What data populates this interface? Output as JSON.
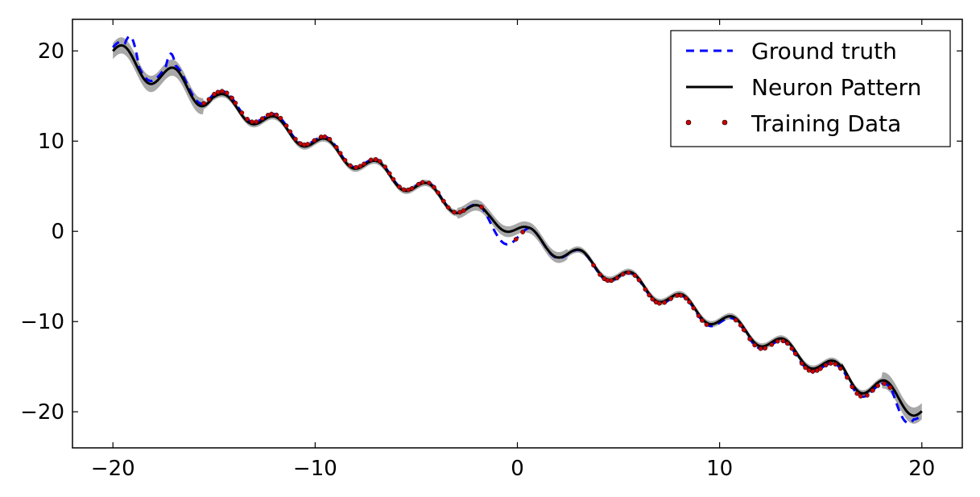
{
  "chart_data": {
    "type": "line",
    "title": "",
    "xlabel": "",
    "ylabel": "",
    "xlim": [
      -22,
      22
    ],
    "ylim": [
      -24,
      23.5
    ],
    "xticks": [
      -20,
      -10,
      0,
      10,
      20
    ],
    "yticks": [
      20,
      10,
      0,
      -10,
      -20
    ],
    "xtick_labels": [
      "−20",
      "−10",
      "0",
      "10",
      "20"
    ],
    "ytick_labels": [
      "20",
      "10",
      "0",
      "−10",
      "−20"
    ],
    "grid": false,
    "legend_position": "top-right",
    "series": [
      {
        "name": "Ground truth",
        "style": "dashed",
        "color": "#0000ff",
        "model": "y = -x + A*sin(2.5x)",
        "x_range": [
          -20,
          20
        ]
      },
      {
        "name": "Neuron Pattern",
        "style": "solid",
        "color": "#000000",
        "uncertainty_band_color": "#999999",
        "x_range": [
          -20,
          20
        ]
      },
      {
        "name": "Training Data",
        "style": "dotted-markers",
        "color": "#cc0000",
        "x_range": [
          -15.5,
          18.5
        ]
      }
    ],
    "legend": [
      "Ground truth",
      "Neuron Pattern",
      "Training Data"
    ]
  }
}
